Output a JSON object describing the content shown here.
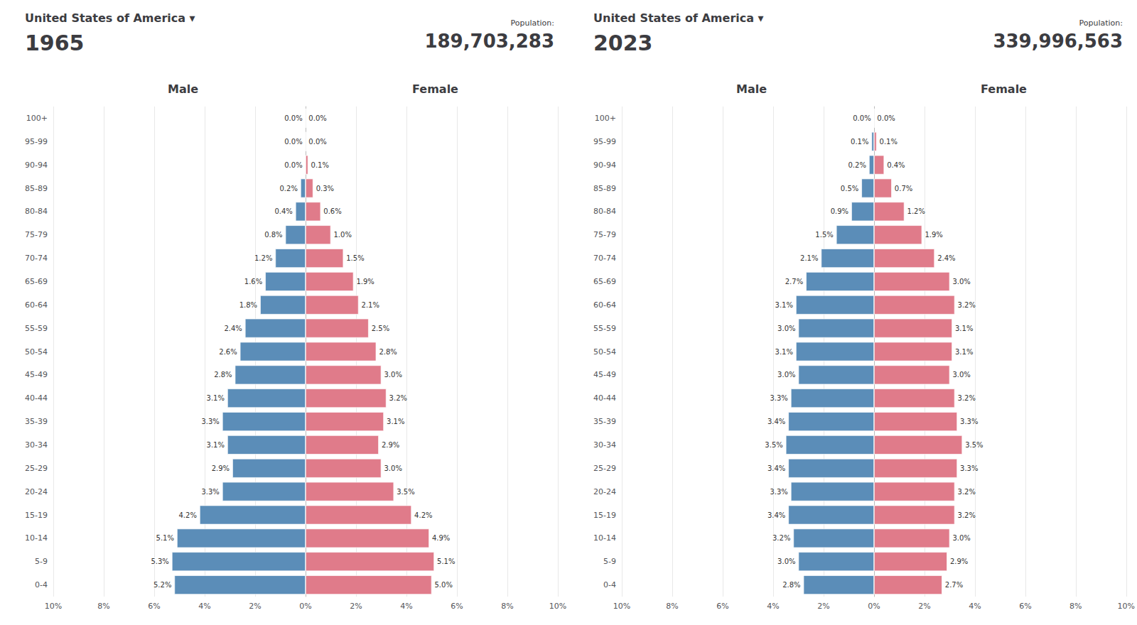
{
  "chart_data": [
    {
      "type": "bar",
      "orientation": "horizontal",
      "title": "United States of America ▾",
      "subtitle": "1965",
      "annotations": [
        "Population:",
        "189,703,283"
      ],
      "categories": [
        "0-4",
        "5-9",
        "10-14",
        "15-19",
        "20-24",
        "25-29",
        "30-34",
        "35-39",
        "40-44",
        "45-49",
        "50-54",
        "55-59",
        "60-64",
        "65-69",
        "70-74",
        "75-79",
        "80-84",
        "85-89",
        "90-94",
        "95-99",
        "100+"
      ],
      "series": [
        {
          "name": "Male",
          "color": "#5b8db8",
          "values": [
            5.2,
            5.3,
            5.1,
            4.2,
            3.3,
            2.9,
            3.1,
            3.3,
            3.1,
            2.8,
            2.6,
            2.4,
            1.8,
            1.6,
            1.2,
            0.8,
            0.4,
            0.2,
            0.0,
            0.0,
            0.0
          ],
          "value_labels": [
            "5.2%",
            "5.3%",
            "5.1%",
            "4.2%",
            "3.3%",
            "2.9%",
            "3.1%",
            "3.3%",
            "3.1%",
            "2.8%",
            "2.6%",
            "2.4%",
            "1.8%",
            "1.6%",
            "1.2%",
            "0.8%",
            "0.4%",
            "0.2%",
            "0.0%",
            "0.0%",
            "0.0%"
          ]
        },
        {
          "name": "Female",
          "color": "#e07b8a",
          "values": [
            5.0,
            5.1,
            4.9,
            4.2,
            3.5,
            3.0,
            2.9,
            3.1,
            3.2,
            3.0,
            2.8,
            2.5,
            2.1,
            1.9,
            1.5,
            1.0,
            0.6,
            0.3,
            0.1,
            0.0,
            0.0
          ],
          "value_labels": [
            "5.0%",
            "5.1%",
            "4.9%",
            "4.2%",
            "3.5%",
            "3.0%",
            "2.9%",
            "3.1%",
            "3.2%",
            "3.0%",
            "2.8%",
            "2.5%",
            "2.1%",
            "1.9%",
            "1.5%",
            "1.0%",
            "0.6%",
            "0.3%",
            "0.1%",
            "0.0%",
            "0.0%"
          ]
        }
      ],
      "xlim": [
        0,
        10
      ],
      "xticks": [
        {
          "value": 0,
          "label": "0%"
        },
        {
          "value": 2,
          "label": "2%"
        },
        {
          "value": 4,
          "label": "4%"
        },
        {
          "value": 6,
          "label": "6%"
        },
        {
          "value": 8,
          "label": "8%"
        },
        {
          "value": 10,
          "label": "10%"
        }
      ],
      "grid": true,
      "data_labels": true
    },
    {
      "type": "bar",
      "orientation": "horizontal",
      "title": "United States of America ▾",
      "subtitle": "2023",
      "annotations": [
        "Population:",
        "339,996,563"
      ],
      "categories": [
        "0-4",
        "5-9",
        "10-14",
        "15-19",
        "20-24",
        "25-29",
        "30-34",
        "35-39",
        "40-44",
        "45-49",
        "50-54",
        "55-59",
        "60-64",
        "65-69",
        "70-74",
        "75-79",
        "80-84",
        "85-89",
        "90-94",
        "95-99",
        "100+"
      ],
      "series": [
        {
          "name": "Male",
          "color": "#5b8db8",
          "values": [
            2.8,
            3.0,
            3.2,
            3.4,
            3.3,
            3.4,
            3.5,
            3.4,
            3.3,
            3.0,
            3.1,
            3.0,
            3.1,
            2.7,
            2.1,
            1.5,
            0.9,
            0.5,
            0.2,
            0.1,
            0.0
          ],
          "value_labels": [
            "2.8%",
            "3.0%",
            "3.2%",
            "3.4%",
            "3.3%",
            "3.4%",
            "3.5%",
            "3.4%",
            "3.3%",
            "3.0%",
            "3.1%",
            "3.0%",
            "3.1%",
            "2.7%",
            "2.1%",
            "1.5%",
            "0.9%",
            "0.5%",
            "0.2%",
            "0.1%",
            "0.0%"
          ]
        },
        {
          "name": "Female",
          "color": "#e07b8a",
          "values": [
            2.7,
            2.9,
            3.0,
            3.2,
            3.2,
            3.3,
            3.5,
            3.3,
            3.2,
            3.0,
            3.1,
            3.1,
            3.2,
            3.0,
            2.4,
            1.9,
            1.2,
            0.7,
            0.4,
            0.1,
            0.0
          ],
          "value_labels": [
            "2.7%",
            "2.9%",
            "3.0%",
            "3.2%",
            "3.2%",
            "3.3%",
            "3.5%",
            "3.3%",
            "3.2%",
            "3.0%",
            "3.1%",
            "3.1%",
            "3.2%",
            "3.0%",
            "2.4%",
            "1.9%",
            "1.2%",
            "0.7%",
            "0.4%",
            "0.1%",
            "0.0%"
          ]
        }
      ],
      "xlim": [
        0,
        10
      ],
      "xticks": [
        {
          "value": 0,
          "label": "0%"
        },
        {
          "value": 2,
          "label": "2%"
        },
        {
          "value": 4,
          "label": "4%"
        },
        {
          "value": 6,
          "label": "6%"
        },
        {
          "value": 8,
          "label": "8%"
        },
        {
          "value": 10,
          "label": "10%"
        }
      ],
      "grid": true,
      "data_labels": true
    }
  ]
}
